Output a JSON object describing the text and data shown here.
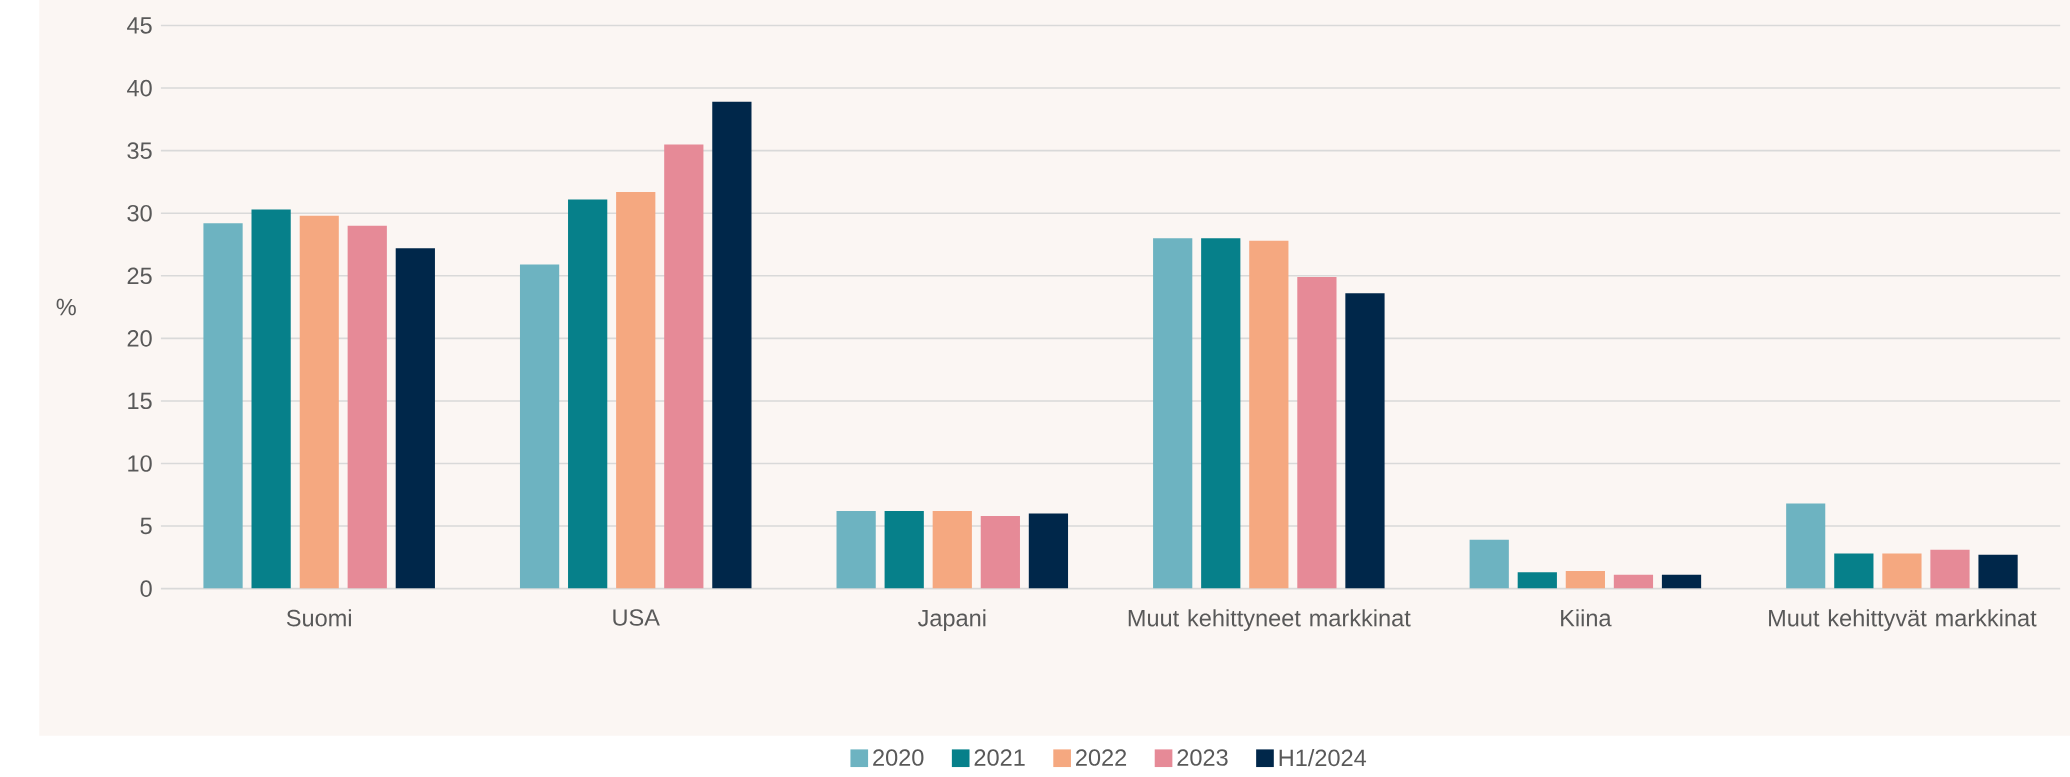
{
  "chart_data": {
    "type": "bar",
    "ylabel": "%",
    "categories": [
      "Suomi",
      "USA",
      "Japani",
      "Muut kehittyneet markkinat",
      "Kiina",
      "Muut kehittyvät markkinat"
    ],
    "series": [
      {
        "name": "2020",
        "color": "#6db3c1",
        "values": [
          29.2,
          25.9,
          6.2,
          28.0,
          3.9,
          6.8
        ]
      },
      {
        "name": "2021",
        "color": "#06808a",
        "values": [
          30.3,
          31.1,
          6.2,
          28.0,
          1.3,
          2.8
        ]
      },
      {
        "name": "2022",
        "color": "#f5a880",
        "values": [
          29.8,
          31.7,
          6.2,
          27.8,
          1.4,
          2.8
        ]
      },
      {
        "name": "2023",
        "color": "#e68a97",
        "values": [
          29.0,
          35.5,
          5.8,
          24.9,
          1.1,
          3.1
        ]
      },
      {
        "name": "H1/2024",
        "color": "#00274a",
        "values": [
          27.2,
          38.9,
          6.0,
          23.6,
          1.1,
          2.7
        ]
      }
    ],
    "ylim": [
      0,
      45
    ],
    "yticks": [
      0,
      5,
      10,
      15,
      20,
      25,
      30,
      35,
      40,
      45
    ],
    "grid": "y",
    "legend": "bottom"
  }
}
